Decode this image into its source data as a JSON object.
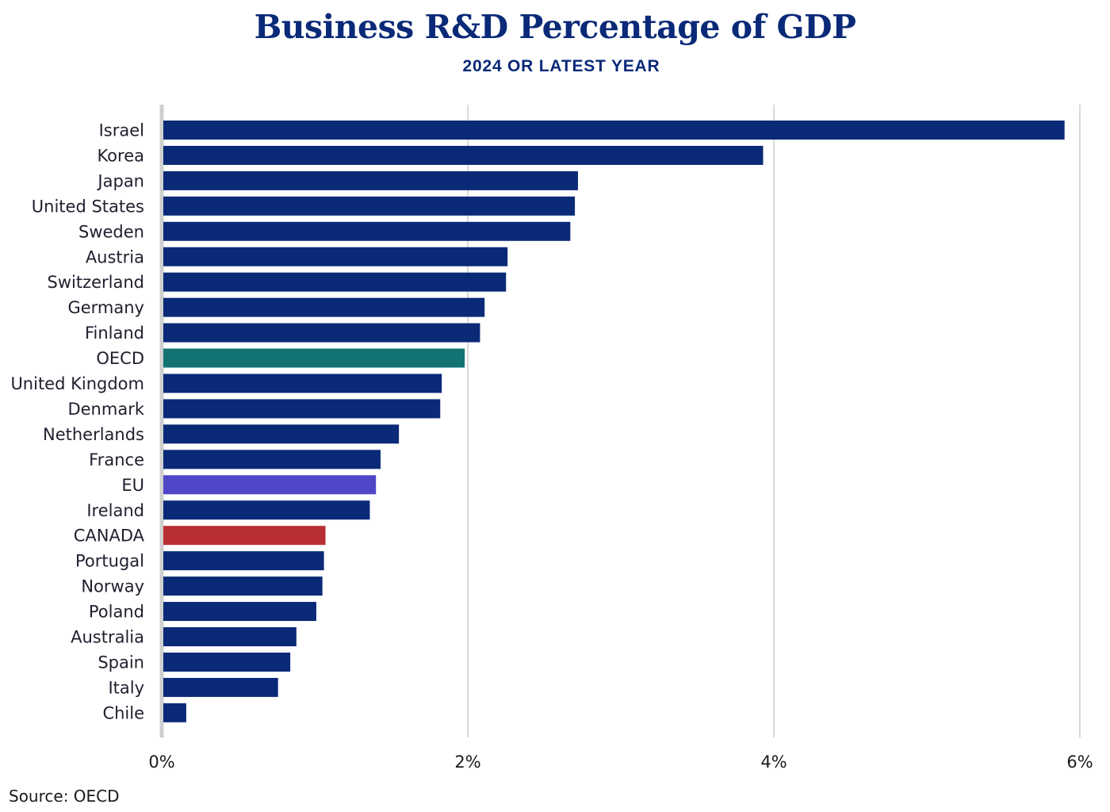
{
  "chart_data": {
    "type": "bar",
    "orientation": "horizontal",
    "title": "Business R&D Percentage of GDP",
    "subtitle": "2024 OR LATEST YEAR",
    "source": "Source: OECD",
    "categories": [
      "Israel",
      "Korea",
      "Japan",
      "United States",
      "Sweden",
      "Austria",
      "Switzerland",
      "Germany",
      "Finland",
      "OECD",
      "United Kingdom",
      "Denmark",
      "Netherlands",
      "France",
      "EU",
      "Ireland",
      "CANADA",
      "Portugal",
      "Norway",
      "Poland",
      "Australia",
      "Spain",
      "Italy",
      "Chile"
    ],
    "values": [
      5.9,
      3.93,
      2.72,
      2.7,
      2.67,
      2.26,
      2.25,
      2.11,
      2.08,
      1.98,
      1.83,
      1.82,
      1.55,
      1.43,
      1.4,
      1.36,
      1.07,
      1.06,
      1.05,
      1.01,
      0.88,
      0.84,
      0.76,
      0.16
    ],
    "bar_colors": [
      "#0a2a78",
      "#0a2a78",
      "#0a2a78",
      "#0a2a78",
      "#0a2a78",
      "#0a2a78",
      "#0a2a78",
      "#0a2a78",
      "#0a2a78",
      "#137373",
      "#0a2a78",
      "#0a2a78",
      "#0a2a78",
      "#0a2a78",
      "#4f47c8",
      "#0a2a78",
      "#b82e33",
      "#0a2a78",
      "#0a2a78",
      "#0a2a78",
      "#0a2a78",
      "#0a2a78",
      "#0a2a78",
      "#0a2a78"
    ],
    "xlim": [
      0,
      6
    ],
    "xticks": [
      0,
      2,
      4,
      6
    ],
    "xtick_labels": [
      "0%",
      "2%",
      "4%",
      "6%"
    ],
    "grid": true
  }
}
